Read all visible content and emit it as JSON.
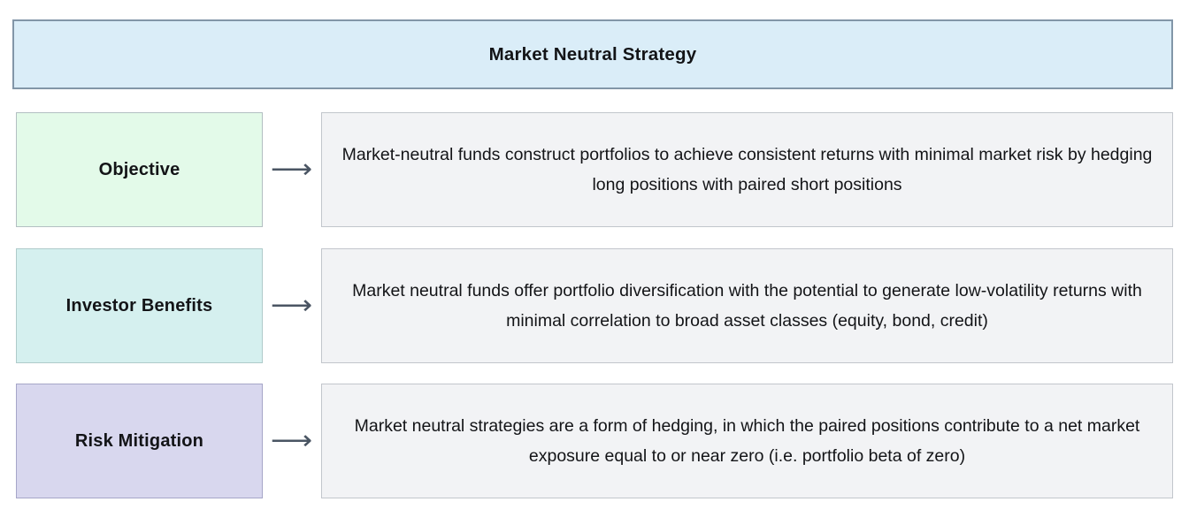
{
  "title": "Market Neutral Strategy",
  "colors": {
    "background": "#ffffff",
    "header_bg": "#daedf8",
    "header_border": "#8296a8",
    "desc_bg": "#f2f3f5",
    "desc_border": "#c2c6cc",
    "text": "#131417",
    "arrow": "#4a5563"
  },
  "icons": {
    "arrow_right": "⟶"
  },
  "rows": [
    {
      "label": "Objective",
      "box_color": "#e3fae9",
      "box_border": "#b3bfc2",
      "description": "Market-neutral funds construct portfolios to achieve consistent returns with minimal market risk by hedging long positions with paired short positions"
    },
    {
      "label": "Investor Benefits",
      "box_color": "#d5f0ef",
      "box_border": "#afcbca",
      "description": "Market neutral funds offer portfolio diversification with the potential to generate low-volatility returns with minimal correlation to broad asset classes (equity, bond, credit)"
    },
    {
      "label": "Risk Mitigation",
      "box_color": "#d8d7ee",
      "box_border": "#a6a6c8",
      "description": "Market neutral strategies are a form of hedging, in which the paired positions contribute to a net market exposure equal to or near zero (i.e. portfolio beta of zero)"
    }
  ]
}
